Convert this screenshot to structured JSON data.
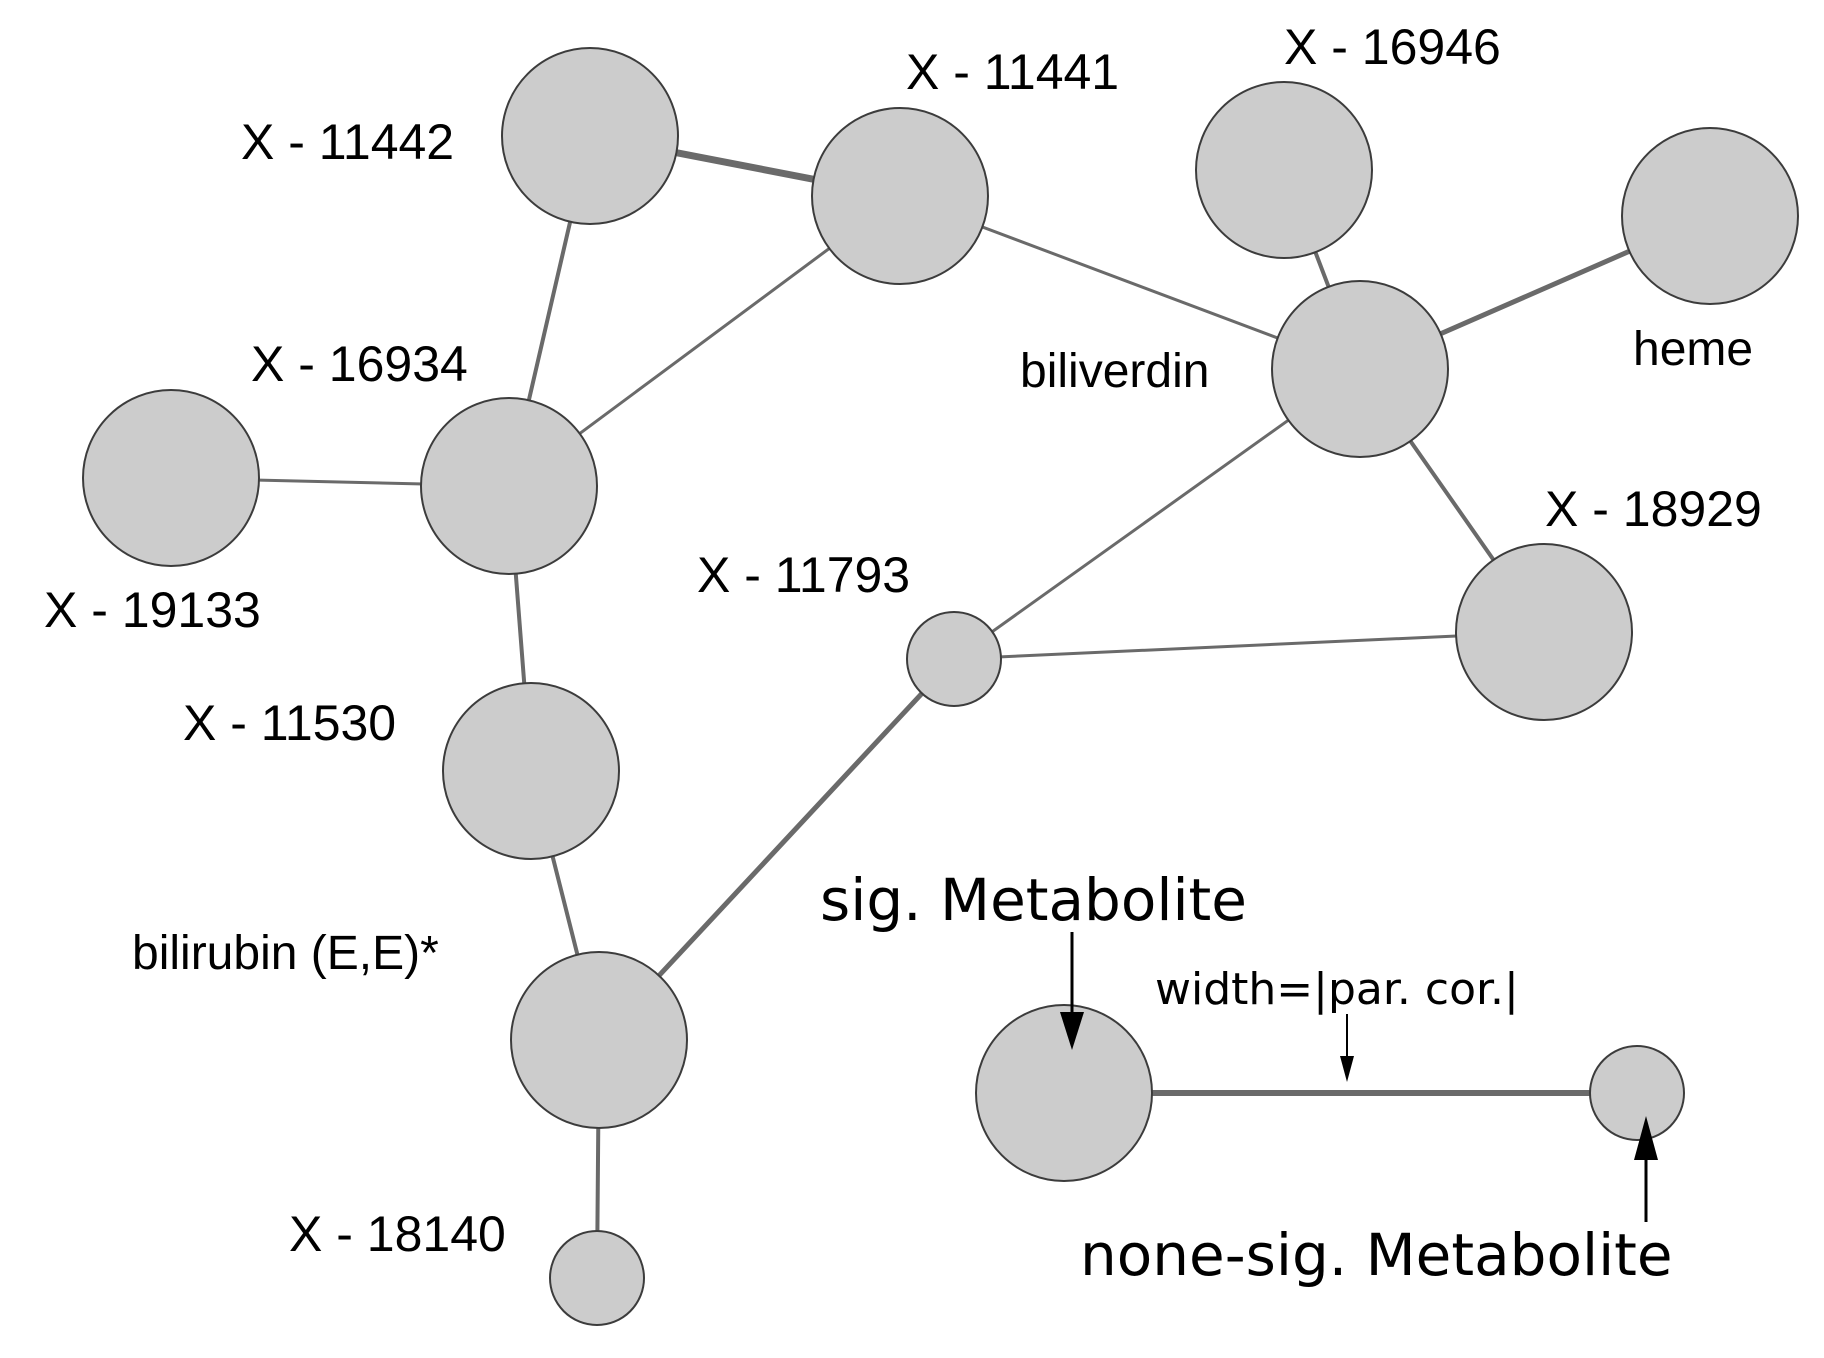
{
  "network": {
    "nodes": [
      {
        "id": "X11442",
        "label": "X - 11442",
        "significant": true
      },
      {
        "id": "X11441",
        "label": "X - 11441",
        "significant": true
      },
      {
        "id": "X16946",
        "label": "X - 16946",
        "significant": true
      },
      {
        "id": "heme",
        "label": "heme",
        "significant": true
      },
      {
        "id": "biliverdin",
        "label": "biliverdin",
        "significant": true
      },
      {
        "id": "X16934",
        "label": "X - 16934",
        "significant": true
      },
      {
        "id": "X19133",
        "label": "X - 19133",
        "significant": true
      },
      {
        "id": "X11793",
        "label": "X - 11793",
        "significant": false
      },
      {
        "id": "X18929",
        "label": "X - 18929",
        "significant": true
      },
      {
        "id": "X11530",
        "label": "X - 11530",
        "significant": true
      },
      {
        "id": "bilirubin",
        "label": "bilirubin (E,E)*",
        "significant": true
      },
      {
        "id": "X18140",
        "label": "X - 18140",
        "significant": false
      }
    ],
    "edges": [
      {
        "source": "X11442",
        "target": "X11441",
        "weight": "strong"
      },
      {
        "source": "X11442",
        "target": "X16934",
        "weight": "medium"
      },
      {
        "source": "X11441",
        "target": "X16934",
        "weight": "weak"
      },
      {
        "source": "X11441",
        "target": "biliverdin",
        "weight": "weak"
      },
      {
        "source": "X16946",
        "target": "biliverdin",
        "weight": "medium"
      },
      {
        "source": "heme",
        "target": "biliverdin",
        "weight": "strong"
      },
      {
        "source": "biliverdin",
        "target": "X11793",
        "weight": "weak"
      },
      {
        "source": "biliverdin",
        "target": "X18929",
        "weight": "medium"
      },
      {
        "source": "X11793",
        "target": "X18929",
        "weight": "weak"
      },
      {
        "source": "X11793",
        "target": "bilirubin",
        "weight": "strong"
      },
      {
        "source": "X19133",
        "target": "X16934",
        "weight": "weak"
      },
      {
        "source": "X16934",
        "target": "X11530",
        "weight": "medium"
      },
      {
        "source": "X11530",
        "target": "bilirubin",
        "weight": "medium"
      },
      {
        "source": "bilirubin",
        "target": "X18140",
        "weight": "medium"
      }
    ]
  },
  "legend": {
    "sig_label": "sig. Metabolite",
    "width_label": "width=|par. cor.|",
    "nonsig_label": "none-sig. Metabolite"
  },
  "colors": {
    "node_fill": "#cccccc",
    "node_stroke": "#3c3c3c",
    "edge": "#6a6a6a",
    "text": "#000000"
  }
}
